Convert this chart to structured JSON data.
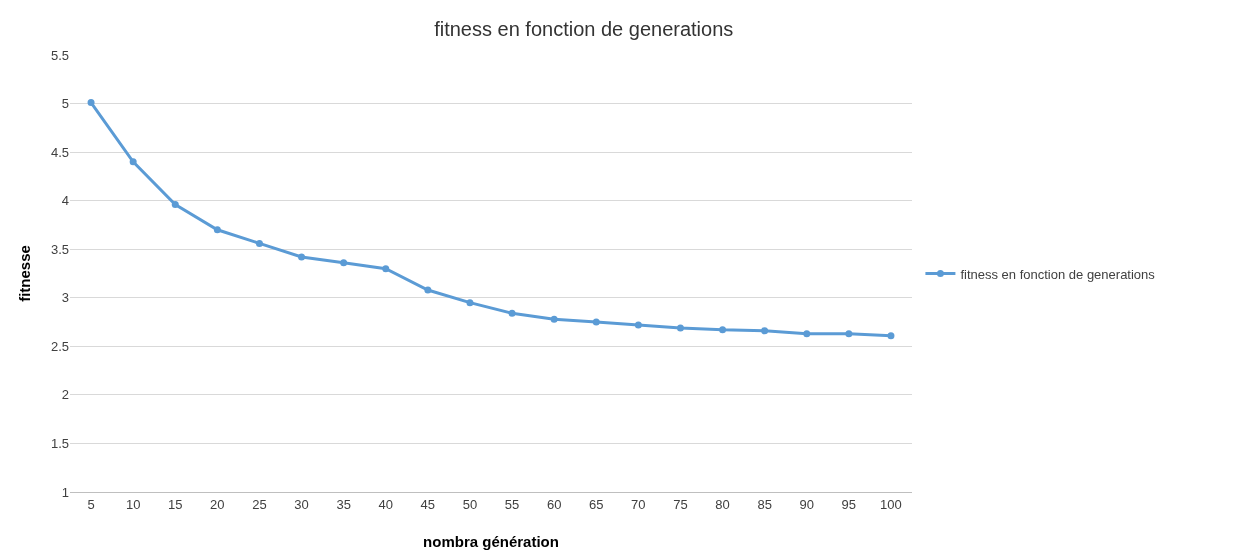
{
  "chart_data": {
    "type": "line",
    "title": "fitness en fonction de generations",
    "xlabel": "nombra génération",
    "ylabel": "fitnesse",
    "categories": [
      "5",
      "10",
      "15",
      "20",
      "25",
      "30",
      "35",
      "40",
      "45",
      "50",
      "55",
      "60",
      "65",
      "70",
      "75",
      "80",
      "85",
      "90",
      "95",
      "100"
    ],
    "series": [
      {
        "name": "fitness en fonction de generations",
        "color": "#5b9bd5",
        "values": [
          5.01,
          4.4,
          3.96,
          3.7,
          3.56,
          3.42,
          3.36,
          3.3,
          3.08,
          2.95,
          2.84,
          2.78,
          2.75,
          2.72,
          2.69,
          2.67,
          2.66,
          2.63,
          2.63,
          2.61
        ]
      }
    ],
    "ylim": [
      1,
      5.5
    ],
    "yticks": [
      1,
      1.5,
      2,
      2.5,
      3,
      3.5,
      4,
      4.5,
      5,
      5.5
    ],
    "grid": "y",
    "legend": "right",
    "marker": "circle",
    "line_style": "solid"
  }
}
